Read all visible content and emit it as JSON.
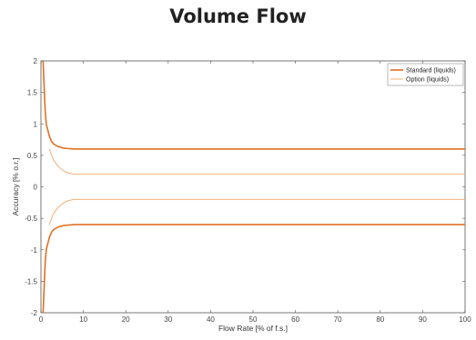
{
  "chart_data": {
    "type": "line",
    "title": "Volume Flow",
    "xlabel": "Flow Rate [% of f.s.]",
    "ylabel": "Accuracy [% o.r.]",
    "xlim": [
      0,
      100
    ],
    "ylim": [
      -2,
      2
    ],
    "xticks": [
      0,
      10,
      20,
      30,
      40,
      50,
      60,
      70,
      80,
      90,
      100
    ],
    "yticks": [
      -2,
      -1.5,
      -1,
      -0.5,
      0,
      0.5,
      1,
      1.5,
      2
    ],
    "grid": false,
    "legend_position": "top-right",
    "series": [
      {
        "name": "Standard (liquids)",
        "color": "#e07020",
        "x": [
          0.5,
          0.75,
          1.0,
          1.25,
          1.5,
          2.0,
          2.5,
          3,
          4,
          5,
          6,
          8,
          10,
          20,
          40,
          60,
          80,
          100
        ],
        "upper": [
          2.0,
          1.6,
          1.2,
          1.0,
          0.93,
          0.8,
          0.72,
          0.68,
          0.64,
          0.62,
          0.61,
          0.6,
          0.6,
          0.6,
          0.6,
          0.6,
          0.6,
          0.6
        ],
        "lower": [
          -2.0,
          -1.6,
          -1.2,
          -1.0,
          -0.93,
          -0.8,
          -0.72,
          -0.68,
          -0.64,
          -0.62,
          -0.61,
          -0.6,
          -0.6,
          -0.6,
          -0.6,
          -0.6,
          -0.6,
          -0.6
        ]
      },
      {
        "name": "Option (liquids)",
        "color": "#f2a566",
        "x": [
          2.0,
          2.5,
          3,
          4,
          5,
          6,
          7,
          8,
          10,
          20,
          40,
          60,
          80,
          100
        ],
        "upper": [
          0.6,
          0.5,
          0.42,
          0.33,
          0.27,
          0.23,
          0.21,
          0.2,
          0.2,
          0.2,
          0.2,
          0.2,
          0.2,
          0.2
        ],
        "lower": [
          -0.6,
          -0.5,
          -0.42,
          -0.33,
          -0.27,
          -0.23,
          -0.21,
          -0.2,
          -0.2,
          -0.2,
          -0.2,
          -0.2,
          -0.2,
          -0.2
        ]
      }
    ]
  }
}
